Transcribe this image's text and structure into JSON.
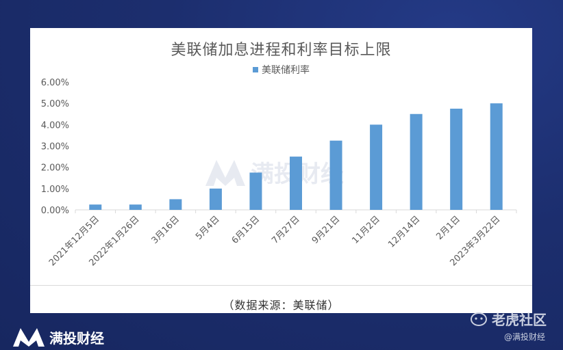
{
  "chart_data": {
    "type": "bar",
    "title": "美联储加息进程和利率目标上限",
    "categories": [
      "2021年12月5日",
      "2022年1月26日",
      "3月16日",
      "5月4日",
      "6月15日",
      "7月27日",
      "9月21日",
      "11月2日",
      "12月14日",
      "2月1日",
      "2023年3月22日"
    ],
    "series": [
      {
        "name": "美联储利率",
        "values": [
          0.25,
          0.25,
          0.5,
          1.0,
          1.75,
          2.5,
          3.25,
          4.0,
          4.5,
          4.75,
          5.0
        ]
      }
    ],
    "y_ticks": [
      "0.00%",
      "1.00%",
      "2.00%",
      "3.00%",
      "4.00%",
      "5.00%",
      "6.00%"
    ],
    "ylim": [
      0,
      6
    ],
    "legend_position": "top",
    "grid": false,
    "bar_color": "#5b9bd5"
  },
  "source_note": "（数据来源：美联储）",
  "watermark": "满投财经",
  "footer": {
    "brand_left": "满投财经",
    "brand_right": "老虎社区",
    "author": "@满投财经"
  }
}
